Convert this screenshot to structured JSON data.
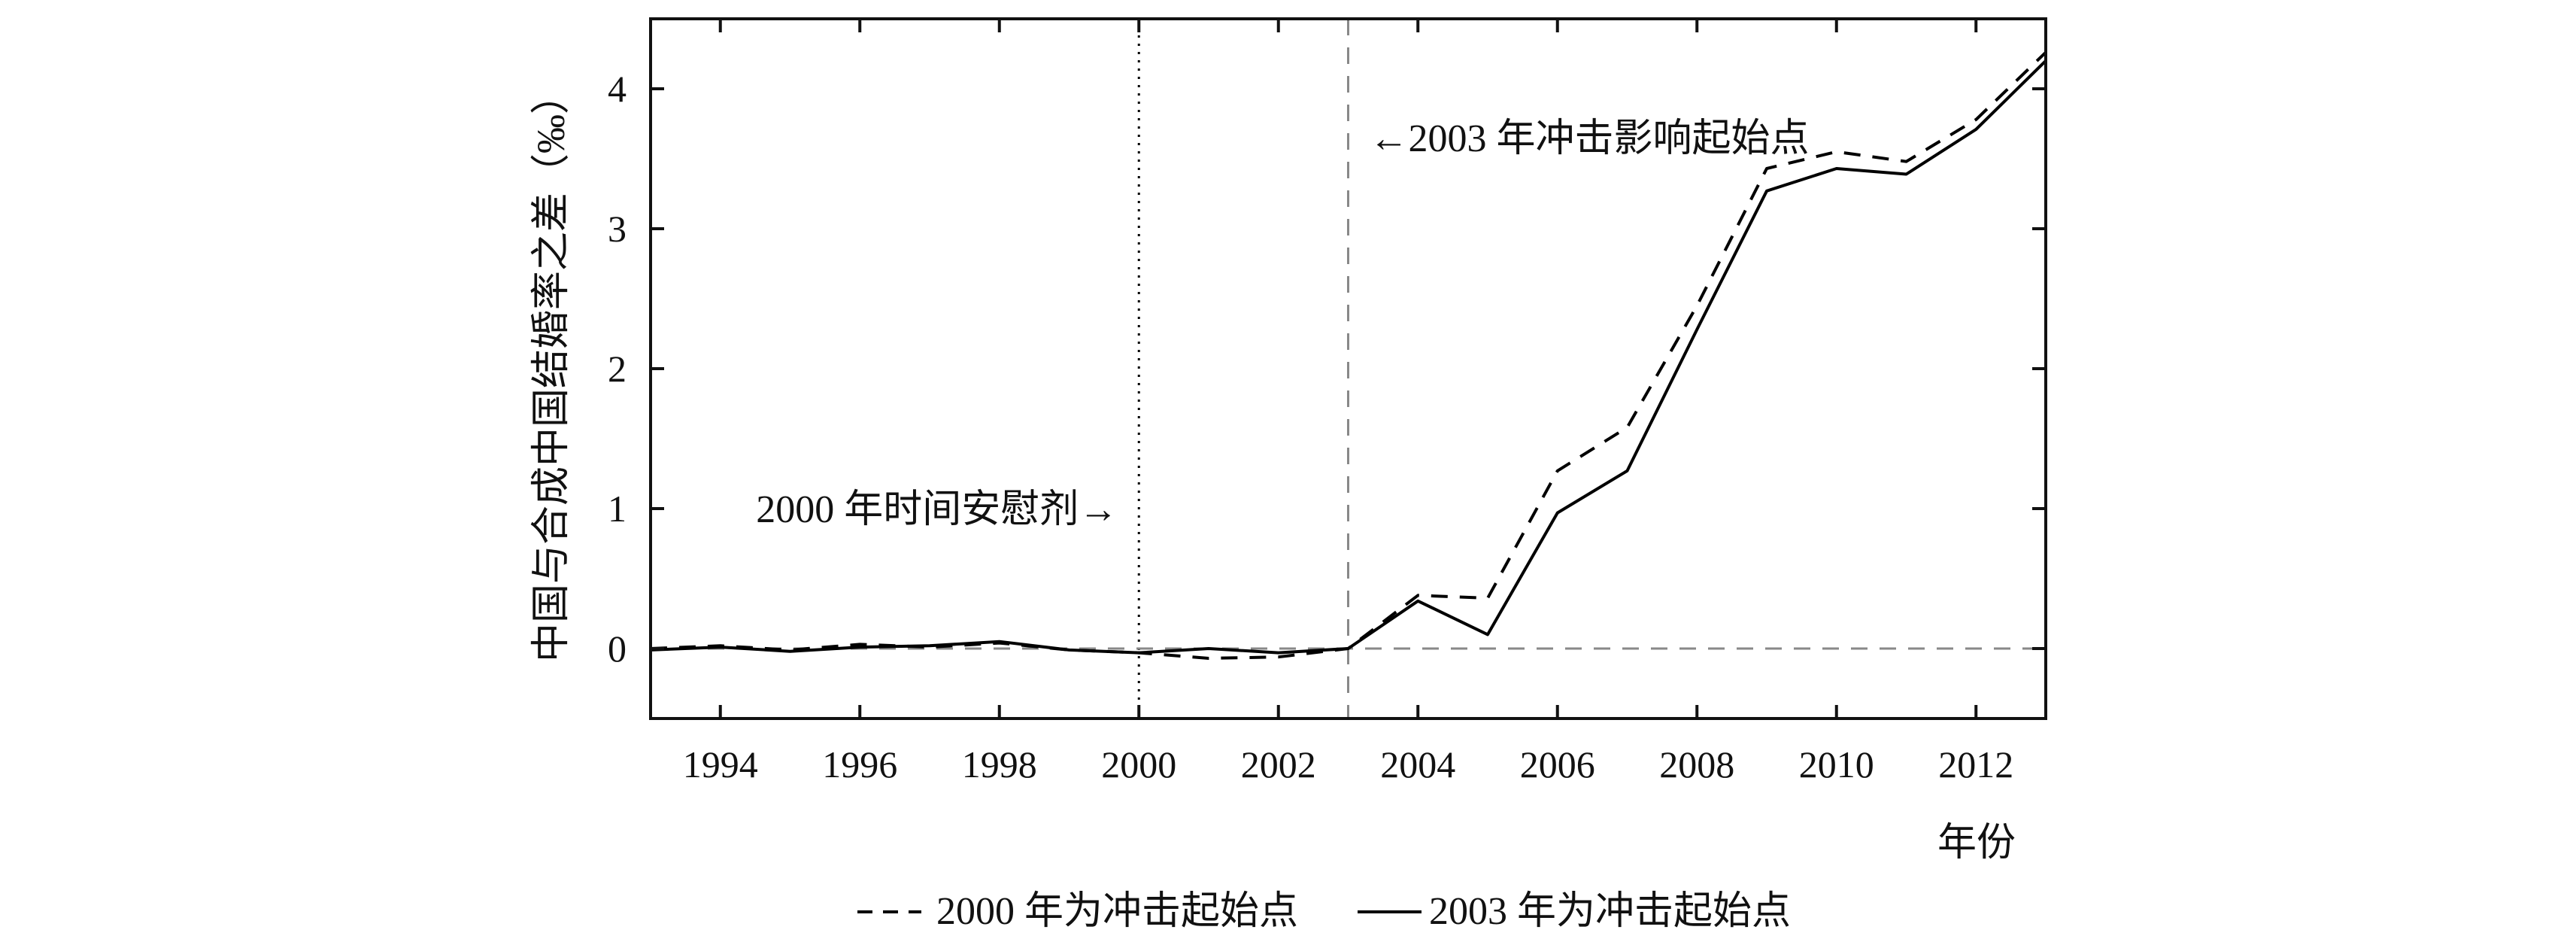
{
  "chart_data": {
    "type": "line",
    "xlabel": "年份",
    "ylabel": "中国与合成中国结婚率之差（‰）",
    "xlim": [
      1993,
      2013
    ],
    "ylim": [
      -0.5,
      4.5
    ],
    "x_ticks": [
      "1994",
      "1996",
      "1998",
      "2000",
      "2002",
      "2004",
      "2006",
      "2008",
      "2010",
      "2012"
    ],
    "y_ticks": [
      "0",
      "1",
      "2",
      "3",
      "4"
    ],
    "x": [
      1993,
      1994,
      1995,
      1996,
      1997,
      1998,
      1999,
      2000,
      2001,
      2002,
      2003,
      2004,
      2005,
      2006,
      2007,
      2008,
      2009,
      2010,
      2011,
      2012,
      2013
    ],
    "series": [
      {
        "name": "2000 年为冲击起始点",
        "style": "dashed",
        "color": "#000000",
        "values": [
          0.0,
          0.02,
          -0.01,
          0.03,
          0.01,
          0.04,
          -0.01,
          -0.03,
          -0.07,
          -0.06,
          0.0,
          0.38,
          0.36,
          1.27,
          1.58,
          2.45,
          3.43,
          3.55,
          3.48,
          3.78,
          4.26
        ]
      },
      {
        "name": "2003 年为冲击起始点",
        "style": "solid",
        "color": "#000000",
        "values": [
          -0.01,
          0.01,
          -0.02,
          0.01,
          0.02,
          0.05,
          -0.01,
          -0.03,
          0.0,
          -0.03,
          0.0,
          0.34,
          0.1,
          0.97,
          1.27,
          2.28,
          3.27,
          3.43,
          3.39,
          3.71,
          4.2
        ]
      }
    ],
    "reference_lines": [
      {
        "axis": "x",
        "value": 2000,
        "style": "dotted",
        "color": "#000000"
      },
      {
        "axis": "x",
        "value": 2003,
        "style": "dashed",
        "color": "#888888"
      },
      {
        "axis": "y",
        "value": 0,
        "style": "dashed",
        "color": "#888888"
      }
    ],
    "annotations": [
      {
        "text": "2000 年时间安慰剂→",
        "x": 2000,
        "y": 1
      },
      {
        "text": "←2003 年冲击影响起始点",
        "x": 2003,
        "y": 3.65
      }
    ],
    "legend_position": "bottom",
    "grid": false
  }
}
